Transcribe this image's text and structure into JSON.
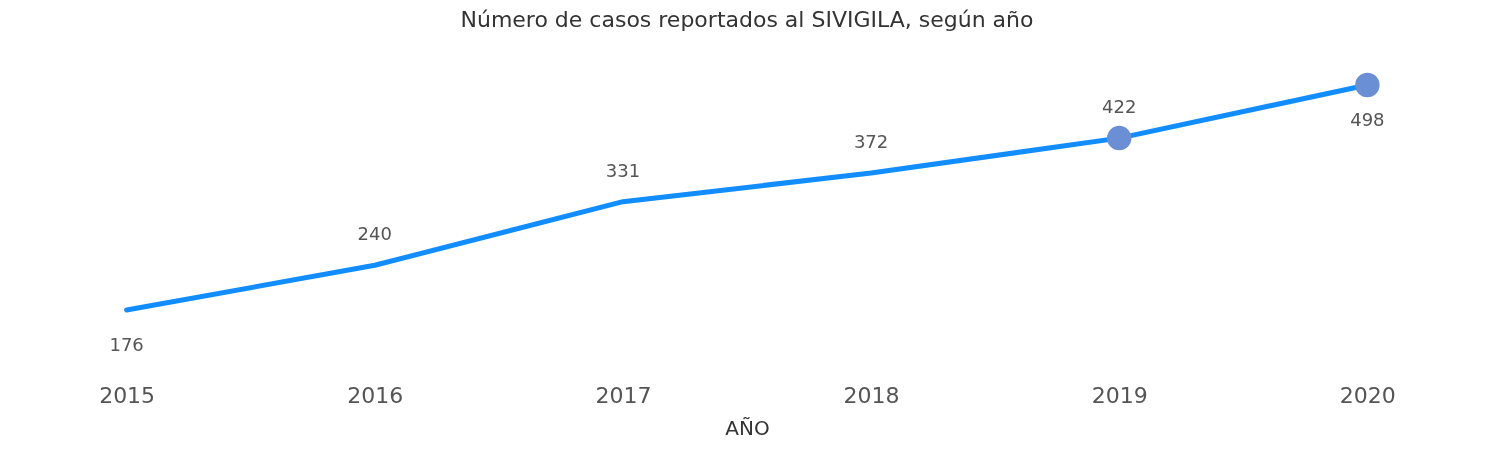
{
  "chart_data": {
    "type": "line",
    "title": "Número de casos reportados al SIVIGILA, según año",
    "xlabel": "AÑO",
    "categories": [
      "2015",
      "2016",
      "2017",
      "2018",
      "2019",
      "2020"
    ],
    "series": [
      {
        "color": "#118dff",
        "values": [
          176,
          240,
          331,
          372,
          422,
          498
        ],
        "value_labels": [
          "176",
          "240",
          "331",
          "372",
          null,
          null
        ]
      },
      {
        "type": "scatter",
        "color": "#6b8fd4",
        "values": [
          null,
          null,
          null,
          null,
          422,
          498
        ],
        "value_labels": [
          null,
          null,
          null,
          null,
          "422",
          "498"
        ]
      }
    ],
    "grid": false
  }
}
